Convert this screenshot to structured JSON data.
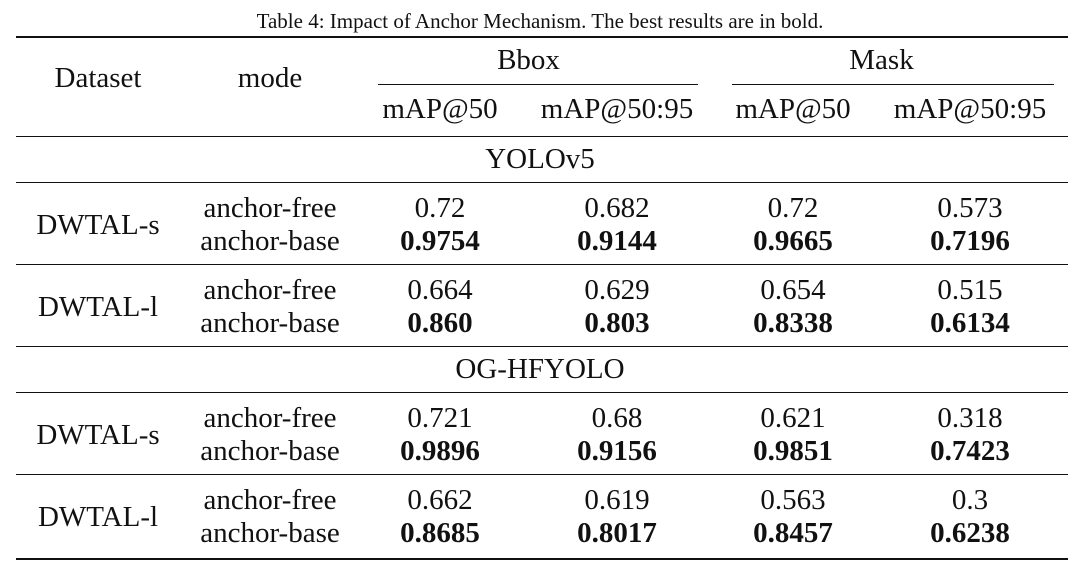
{
  "caption": "Table 4: Impact of Anchor Mechanism. The best results are in bold.",
  "header": {
    "dataset": "Dataset",
    "mode": "mode",
    "groups": [
      "Bbox",
      "Mask"
    ],
    "metrics": [
      "mAP@50",
      "mAP@50:95",
      "mAP@50",
      "mAP@50:95"
    ]
  },
  "sections": [
    {
      "name": "YOLOv5",
      "blocks": [
        {
          "dataset": "DWTAL-s",
          "rows": [
            {
              "mode": "anchor-free",
              "values": [
                "0.72",
                "0.682",
                "0.72",
                "0.573"
              ],
              "bold": false
            },
            {
              "mode": "anchor-base",
              "values": [
                "0.9754",
                "0.9144",
                "0.9665",
                "0.7196"
              ],
              "bold": true
            }
          ]
        },
        {
          "dataset": "DWTAL-l",
          "rows": [
            {
              "mode": "anchor-free",
              "values": [
                "0.664",
                "0.629",
                "0.654",
                "0.515"
              ],
              "bold": false
            },
            {
              "mode": "anchor-base",
              "values": [
                "0.860",
                "0.803",
                "0.8338",
                "0.6134"
              ],
              "bold": true
            }
          ]
        }
      ]
    },
    {
      "name": "OG-HFYOLO",
      "blocks": [
        {
          "dataset": "DWTAL-s",
          "rows": [
            {
              "mode": "anchor-free",
              "values": [
                "0.721",
                "0.68",
                "0.621",
                "0.318"
              ],
              "bold": false
            },
            {
              "mode": "anchor-base",
              "values": [
                "0.9896",
                "0.9156",
                "0.9851",
                "0.7423"
              ],
              "bold": true
            }
          ]
        },
        {
          "dataset": "DWTAL-l",
          "rows": [
            {
              "mode": "anchor-free",
              "values": [
                "0.662",
                "0.619",
                "0.563",
                "0.3"
              ],
              "bold": false
            },
            {
              "mode": "anchor-base",
              "values": [
                "0.8685",
                "0.8017",
                "0.8457",
                "0.6238"
              ],
              "bold": true
            }
          ]
        }
      ]
    }
  ]
}
